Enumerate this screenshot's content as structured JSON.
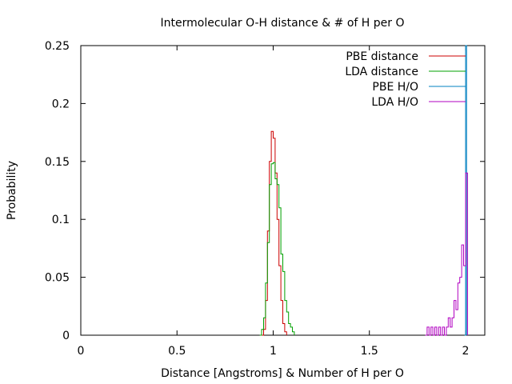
{
  "chart_data": {
    "type": "line",
    "style": "histogram-steps",
    "title": "Intermolecular O-H distance & # of H per O",
    "xlabel": "Distance [Angstroms] & Number of H per O",
    "ylabel": "Probability",
    "xlim": [
      0,
      2.1
    ],
    "ylim": [
      0,
      0.25
    ],
    "xticks": [
      "0",
      "0.5",
      "1",
      "1.5",
      "2"
    ],
    "yticks": [
      "0",
      "0.05",
      "0.1",
      "0.15",
      "0.2",
      "0.25"
    ],
    "grid": false,
    "legend_position": "top-right",
    "series": [
      {
        "name": "PBE distance",
        "color": "#cc0000",
        "x": [
          0.94,
          0.95,
          0.96,
          0.97,
          0.98,
          0.99,
          1.0,
          1.01,
          1.02,
          1.03,
          1.04,
          1.05,
          1.06,
          1.07
        ],
        "y": [
          0.0,
          0.005,
          0.03,
          0.09,
          0.15,
          0.176,
          0.17,
          0.14,
          0.1,
          0.06,
          0.03,
          0.01,
          0.003,
          0.0
        ]
      },
      {
        "name": "LDA distance",
        "color": "#00a000",
        "x": [
          0.93,
          0.94,
          0.95,
          0.96,
          0.97,
          0.98,
          0.99,
          1.0,
          1.01,
          1.02,
          1.03,
          1.04,
          1.05,
          1.06,
          1.07,
          1.08,
          1.09,
          1.1,
          1.11
        ],
        "y": [
          0.0,
          0.005,
          0.015,
          0.045,
          0.08,
          0.13,
          0.148,
          0.149,
          0.135,
          0.13,
          0.11,
          0.07,
          0.055,
          0.03,
          0.02,
          0.01,
          0.007,
          0.003,
          0.0
        ]
      },
      {
        "name": "PBE H/O",
        "color": "#0080c0",
        "x": [
          1.995,
          2.0,
          2.005
        ],
        "y": [
          0.0,
          0.25,
          0.0
        ]
      },
      {
        "name": "LDA H/O",
        "color": "#b000c0",
        "x": [
          1.79,
          1.8,
          1.81,
          1.82,
          1.83,
          1.84,
          1.85,
          1.86,
          1.87,
          1.88,
          1.89,
          1.9,
          1.91,
          1.92,
          1.93,
          1.94,
          1.95,
          1.96,
          1.97,
          1.98,
          1.99,
          2.0,
          2.01
        ],
        "y": [
          0.0,
          0.007,
          0.0,
          0.007,
          0.0,
          0.007,
          0.0,
          0.007,
          0.0,
          0.007,
          0.0,
          0.007,
          0.015,
          0.007,
          0.015,
          0.03,
          0.022,
          0.045,
          0.05,
          0.078,
          0.06,
          0.14,
          0.0
        ]
      }
    ]
  }
}
